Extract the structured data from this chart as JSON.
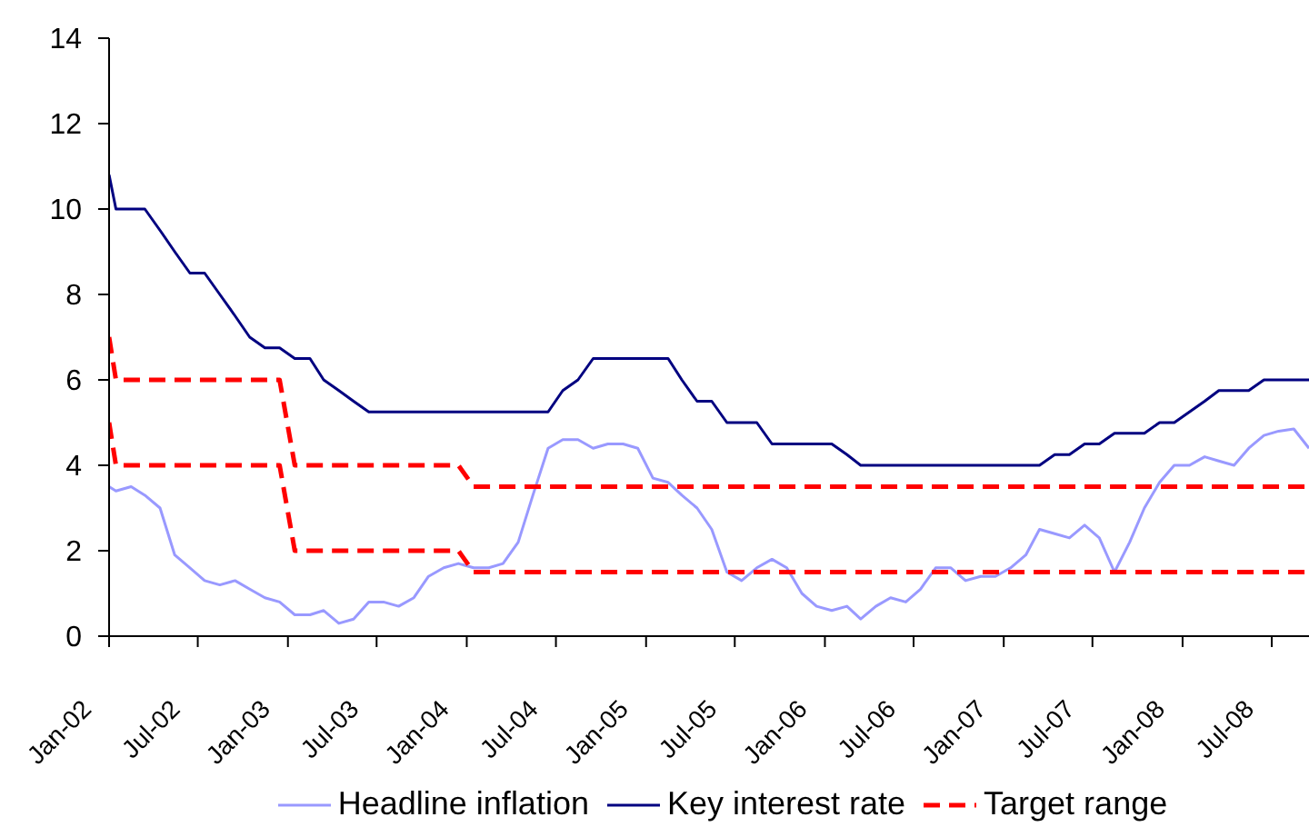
{
  "chart_data": {
    "type": "line",
    "legend": "bottom",
    "marker": "none",
    "x": [
      "2002-01-01",
      "2002-01-15",
      "2002-02-15",
      "2002-03-15",
      "2002-04-15",
      "2002-05-15",
      "2002-06-15",
      "2002-07-15",
      "2002-08-15",
      "2002-09-15",
      "2002-10-15",
      "2002-11-15",
      "2002-12-15",
      "2003-01-15",
      "2003-02-15",
      "2003-03-15",
      "2003-04-15",
      "2003-05-15",
      "2003-06-15",
      "2003-07-15",
      "2003-08-15",
      "2003-09-15",
      "2003-10-15",
      "2003-11-15",
      "2003-12-15",
      "2004-01-15",
      "2004-02-15",
      "2004-03-15",
      "2004-04-15",
      "2004-05-15",
      "2004-06-15",
      "2004-07-15",
      "2004-08-15",
      "2004-09-15",
      "2004-10-15",
      "2004-11-15",
      "2004-12-15",
      "2005-01-15",
      "2005-02-15",
      "2005-03-15",
      "2005-04-15",
      "2005-05-15",
      "2005-06-15",
      "2005-07-15",
      "2005-08-15",
      "2005-09-15",
      "2005-10-15",
      "2005-11-15",
      "2005-12-15",
      "2006-01-15",
      "2006-02-15",
      "2006-03-15",
      "2006-04-15",
      "2006-05-15",
      "2006-06-15",
      "2006-07-15",
      "2006-08-15",
      "2006-09-15",
      "2006-10-15",
      "2006-11-15",
      "2006-12-15",
      "2007-01-15",
      "2007-02-15",
      "2007-03-15",
      "2007-04-15",
      "2007-05-15",
      "2007-06-15",
      "2007-07-15",
      "2007-08-15",
      "2007-09-15",
      "2007-10-15",
      "2007-11-15",
      "2007-12-15",
      "2008-01-15",
      "2008-02-15",
      "2008-03-15",
      "2008-04-15",
      "2008-05-15",
      "2008-06-15",
      "2008-07-15",
      "2008-08-15",
      "2008-09-15"
    ],
    "xlim": [
      "2002-01-01",
      "2008-09-15"
    ],
    "xticks": [
      {
        "value": "2002-01",
        "label": "Jan-02"
      },
      {
        "value": "2002-07",
        "label": "Jul-02"
      },
      {
        "value": "2003-01",
        "label": "Jan-03"
      },
      {
        "value": "2003-07",
        "label": "Jul-03"
      },
      {
        "value": "2004-01",
        "label": "Jan-04"
      },
      {
        "value": "2004-07",
        "label": "Jul-04"
      },
      {
        "value": "2005-01",
        "label": "Jan-05"
      },
      {
        "value": "2005-07",
        "label": "Jul-05"
      },
      {
        "value": "2006-01",
        "label": "Jan-06"
      },
      {
        "value": "2006-07",
        "label": "Jul-06"
      },
      {
        "value": "2007-01",
        "label": "Jan-07"
      },
      {
        "value": "2007-07",
        "label": "Jul-07"
      },
      {
        "value": "2008-01",
        "label": "Jan-08"
      },
      {
        "value": "2008-07",
        "label": "Jul-08"
      }
    ],
    "ylim": [
      0,
      14
    ],
    "yticks": [
      0,
      2,
      4,
      6,
      8,
      10,
      12,
      14
    ],
    "series": [
      {
        "name": "Headline inflation",
        "color": "#9999ff",
        "values": [
          3.5,
          3.4,
          3.5,
          3.3,
          3.0,
          1.9,
          1.6,
          1.3,
          1.2,
          1.3,
          1.1,
          0.9,
          0.8,
          0.5,
          0.5,
          0.6,
          0.3,
          0.4,
          0.8,
          0.8,
          0.7,
          0.9,
          1.4,
          1.6,
          1.7,
          1.6,
          1.6,
          1.7,
          2.2,
          3.3,
          4.4,
          4.6,
          4.6,
          4.4,
          4.5,
          4.5,
          4.4,
          3.7,
          3.6,
          3.3,
          3.0,
          2.5,
          1.5,
          1.3,
          1.6,
          1.8,
          1.6,
          1.0,
          0.7,
          0.6,
          0.7,
          0.4,
          0.7,
          0.9,
          0.8,
          1.1,
          1.6,
          1.6,
          1.3,
          1.4,
          1.4,
          1.6,
          1.9,
          2.5,
          2.4,
          2.3,
          2.6,
          2.3,
          1.5,
          2.2,
          3.0,
          3.6,
          4.0,
          4.0,
          4.2,
          4.1,
          4.0,
          4.4,
          4.7,
          4.8,
          4.85,
          4.4
        ]
      },
      {
        "name": "Key interest rate",
        "color": "#000080",
        "values": [
          10.8,
          10,
          10,
          10,
          9.5,
          9.0,
          8.5,
          8.5,
          8.0,
          7.5,
          7.0,
          6.75,
          6.75,
          6.5,
          6.5,
          6.0,
          5.75,
          5.5,
          5.25,
          5.25,
          5.25,
          5.25,
          5.25,
          5.25,
          5.25,
          5.25,
          5.25,
          5.25,
          5.25,
          5.25,
          5.25,
          5.75,
          6.0,
          6.5,
          6.5,
          6.5,
          6.5,
          6.5,
          6.5,
          6.0,
          5.5,
          5.5,
          5.0,
          5.0,
          5.0,
          4.5,
          4.5,
          4.5,
          4.5,
          4.5,
          4.25,
          4.0,
          4.0,
          4.0,
          4.0,
          4.0,
          4.0,
          4.0,
          4.0,
          4.0,
          4.0,
          4.0,
          4.0,
          4.0,
          4.25,
          4.25,
          4.5,
          4.5,
          4.75,
          4.75,
          4.75,
          5.0,
          5.0,
          5.25,
          5.5,
          5.75,
          5.75,
          5.75,
          6.0,
          6.0,
          6.0,
          6.0
        ]
      },
      {
        "name": "Target range",
        "color": "#ff0000",
        "line_style": "dashed",
        "x": [
          "2002-01-01",
          "2002-01-15",
          "2002-12-15",
          "2003-01-15",
          "2003-12-15",
          "2004-01-15",
          "2008-09-15"
        ],
        "values": [
          7,
          6,
          6,
          4,
          4,
          3.5,
          3.5
        ]
      },
      {
        "color": "#ff0000",
        "line_style": "dashed",
        "x": [
          "2002-01-01",
          "2002-01-15",
          "2002-12-15",
          "2003-01-15",
          "2003-12-15",
          "2004-01-15",
          "2008-09-15"
        ],
        "values": [
          5,
          4,
          4,
          2,
          2,
          1.5,
          1.5
        ]
      }
    ]
  }
}
